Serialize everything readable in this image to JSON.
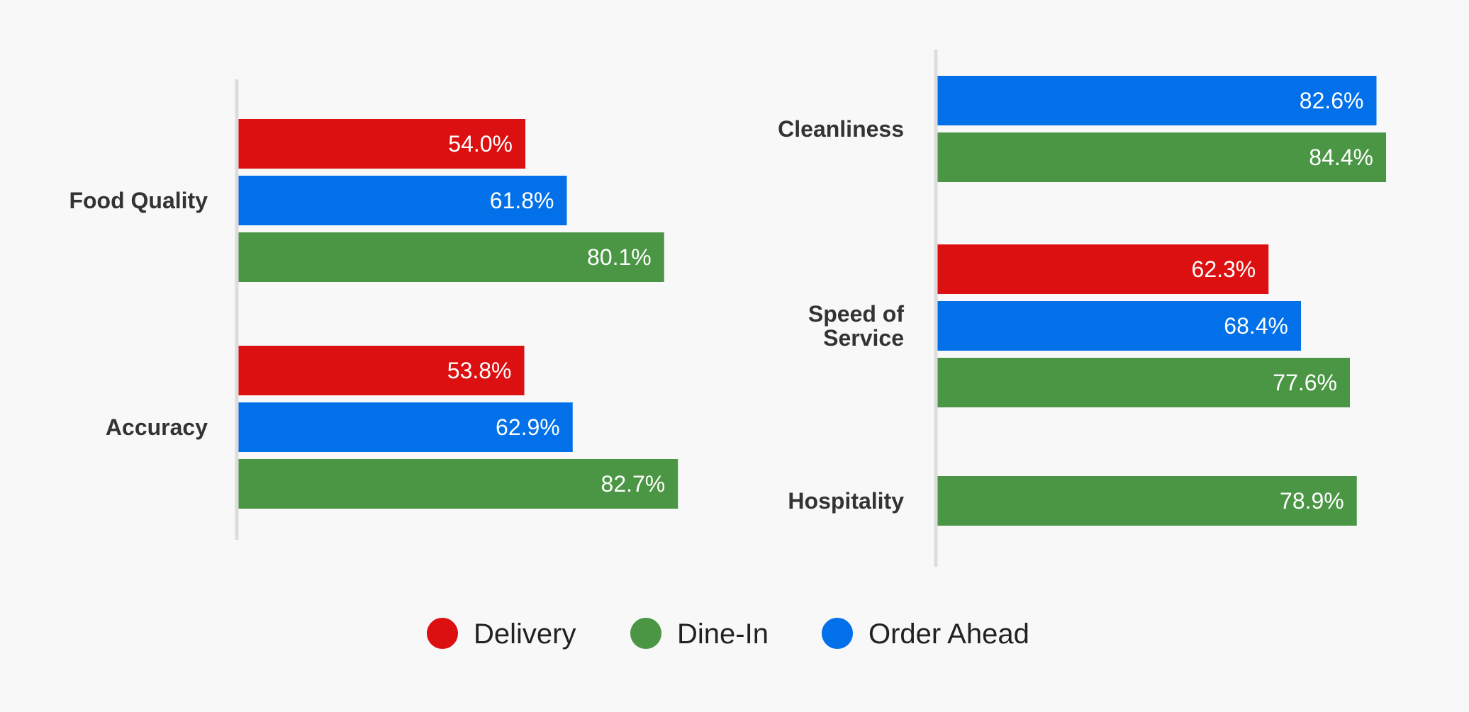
{
  "colors": {
    "Delivery": "#dc1010",
    "Dine-In": "#4a9644",
    "Order Ahead": "#0270e8",
    "axis": "#dddddd",
    "background": "#f8f8f8"
  },
  "legend": {
    "position": "bottom-center",
    "items": [
      "Delivery",
      "Dine-In",
      "Order Ahead"
    ]
  },
  "chart_data": [
    {
      "type": "bar",
      "orientation": "horizontal",
      "xlim": [
        0,
        100
      ],
      "value_suffix": "%",
      "categories": [
        {
          "name": "Food Quality",
          "label_lines": [
            "Food Quality"
          ],
          "bars": [
            {
              "series": "Delivery",
              "value": 54.0
            },
            {
              "series": "Order Ahead",
              "value": 61.8
            },
            {
              "series": "Dine-In",
              "value": 80.1
            }
          ]
        },
        {
          "name": "Accuracy",
          "label_lines": [
            "Accuracy"
          ],
          "bars": [
            {
              "series": "Delivery",
              "value": 53.8
            },
            {
              "series": "Order Ahead",
              "value": 62.9
            },
            {
              "series": "Dine-In",
              "value": 82.7
            }
          ]
        }
      ]
    },
    {
      "type": "bar",
      "orientation": "horizontal",
      "xlim": [
        0,
        100
      ],
      "value_suffix": "%",
      "categories": [
        {
          "name": "Cleanliness",
          "label_lines": [
            "Cleanliness"
          ],
          "bars": [
            {
              "series": "Order Ahead",
              "value": 82.6
            },
            {
              "series": "Dine-In",
              "value": 84.4
            }
          ]
        },
        {
          "name": "Speed of Service",
          "label_lines": [
            "Speed of",
            "Service"
          ],
          "bars": [
            {
              "series": "Delivery",
              "value": 62.3
            },
            {
              "series": "Order Ahead",
              "value": 68.4
            },
            {
              "series": "Dine-In",
              "value": 77.6
            }
          ]
        },
        {
          "name": "Hospitality",
          "label_lines": [
            "Hospitality"
          ],
          "bars": [
            {
              "series": "Dine-In",
              "value": 78.9
            }
          ]
        }
      ]
    }
  ]
}
